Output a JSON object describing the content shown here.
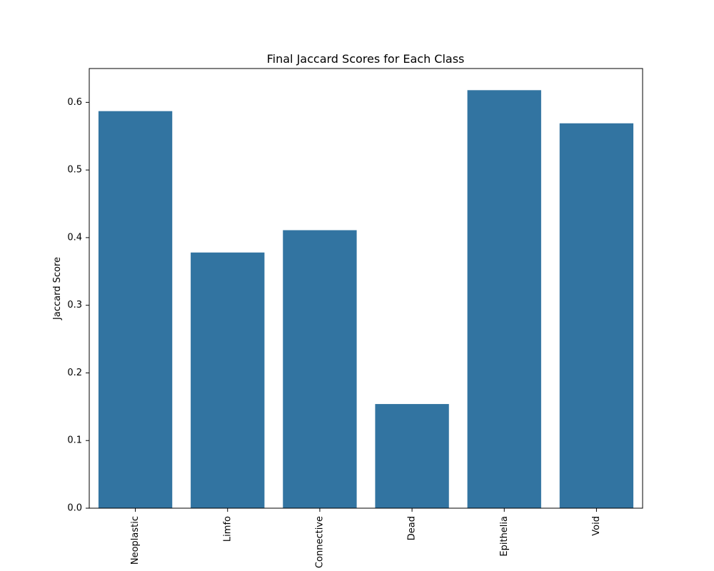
{
  "chart_data": {
    "type": "bar",
    "title": "Final Jaccard Scores for Each Class",
    "xlabel": "",
    "ylabel": "Jaccard Score",
    "categories": [
      "Neoplastic",
      "Limfo",
      "Connective",
      "Dead",
      "Epithelia",
      "Void"
    ],
    "values": [
      0.587,
      0.378,
      0.411,
      0.154,
      0.618,
      0.569
    ],
    "ylim": [
      0,
      0.65
    ],
    "yticks": [
      "0.0",
      "0.1",
      "0.2",
      "0.3",
      "0.4",
      "0.5",
      "0.6"
    ],
    "bar_color": "#3274a1",
    "grid": false,
    "legend": "none",
    "xtick_rotation": "vertical"
  }
}
